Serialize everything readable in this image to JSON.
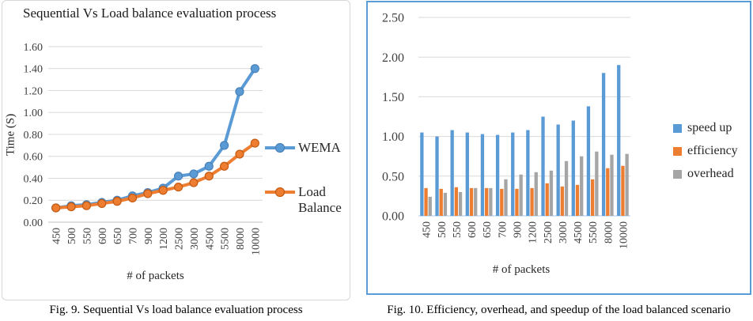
{
  "page": {
    "background": "#FFFFFF"
  },
  "chart_data": [
    {
      "id": "fig9",
      "type": "line",
      "title": "Sequential Vs Load balance evaluation process",
      "xlabel": "# of packets",
      "ylabel": "Time (S)",
      "caption": "Fig. 9. Sequential Vs load balance evaluation process",
      "categories": [
        "450",
        "500",
        "550",
        "600",
        "650",
        "700",
        "900",
        "1200",
        "2500",
        "3000",
        "4500",
        "5500",
        "8000",
        "10000"
      ],
      "series": [
        {
          "name": "WEMA",
          "color": "#5B9BD5",
          "marker_edge": "#4A82B8",
          "values": [
            0.13,
            0.15,
            0.16,
            0.18,
            0.2,
            0.24,
            0.27,
            0.31,
            0.42,
            0.44,
            0.51,
            0.7,
            1.19,
            1.4
          ]
        },
        {
          "name": "Load Balance",
          "color": "#ED7D31",
          "marker_edge": "#C55A11",
          "values": [
            0.13,
            0.14,
            0.15,
            0.17,
            0.19,
            0.22,
            0.26,
            0.29,
            0.32,
            0.36,
            0.42,
            0.51,
            0.62,
            0.72
          ]
        }
      ],
      "ylim": [
        0,
        1.6
      ],
      "ytick_step": 0.2,
      "ytick_labels": [
        "0.00",
        "0.20",
        "0.40",
        "0.60",
        "0.80",
        "1.00",
        "1.20",
        "1.40",
        "1.60"
      ],
      "grid": true,
      "legend_position": "right",
      "gridline_color": "#D9D9D9",
      "axisline_color": "#BFBFBF"
    },
    {
      "id": "fig10",
      "type": "bar",
      "title": "",
      "xlabel": "# of packets",
      "ylabel": "",
      "caption": "Fig. 10. Efficiency, overhead, and speedup of the load balanced scenario",
      "categories": [
        "450",
        "500",
        "550",
        "600",
        "650",
        "700",
        "900",
        "1200",
        "2500",
        "3000",
        "4500",
        "5500",
        "8000",
        "10000"
      ],
      "series": [
        {
          "name": "speed up",
          "color": "#5B9BD5",
          "values": [
            1.05,
            1.0,
            1.08,
            1.05,
            1.03,
            1.02,
            1.05,
            1.08,
            1.25,
            1.15,
            1.2,
            1.38,
            1.8,
            1.9
          ]
        },
        {
          "name": "efficiency",
          "color": "#ED7D31",
          "values": [
            0.35,
            0.34,
            0.36,
            0.35,
            0.35,
            0.34,
            0.34,
            0.35,
            0.41,
            0.37,
            0.39,
            0.46,
            0.6,
            0.63
          ]
        },
        {
          "name": "overhead",
          "color": "#A5A5A5",
          "values": [
            0.24,
            0.29,
            0.3,
            0.35,
            0.35,
            0.46,
            0.52,
            0.55,
            0.57,
            0.69,
            0.75,
            0.81,
            0.77,
            0.78
          ]
        }
      ],
      "ylim": [
        0,
        2.5
      ],
      "ytick_step": 0.5,
      "ytick_labels": [
        "0.00",
        "0.50",
        "1.00",
        "1.50",
        "2.00",
        "2.50"
      ],
      "grid": true,
      "legend_position": "right",
      "gridline_color": "#D9D9D9",
      "axisline_color": "#A9C7E8"
    }
  ]
}
